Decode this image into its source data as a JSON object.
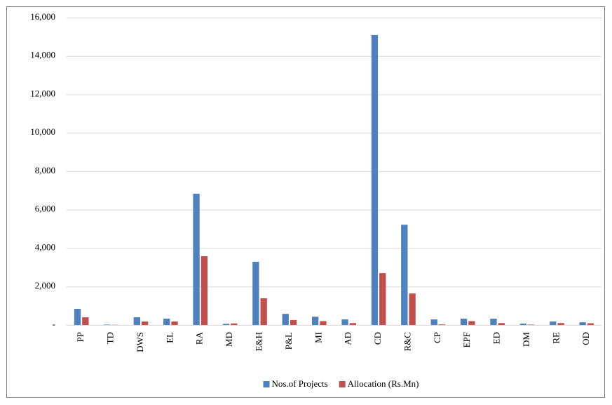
{
  "chart_data": {
    "type": "bar",
    "categories": [
      "PP",
      "TD",
      "DWS",
      "EL",
      "RA",
      "MD",
      "E&H",
      "P&L",
      "MI",
      "AD",
      "CD",
      "R&C",
      "CP",
      "EPF",
      "ED",
      "DM",
      "RE",
      "OD"
    ],
    "series": [
      {
        "name": "Nos.of Projects",
        "color": "#4f81bd",
        "values": [
          840,
          20,
          400,
          330,
          6830,
          60,
          3290,
          580,
          430,
          290,
          15090,
          5220,
          290,
          330,
          330,
          70,
          180,
          140
        ]
      },
      {
        "name": "Allocation (Rs.Mn)",
        "color": "#c0504d",
        "values": [
          400,
          10,
          180,
          180,
          3580,
          80,
          1390,
          260,
          200,
          100,
          2700,
          1640,
          30,
          200,
          100,
          20,
          100,
          90
        ]
      }
    ],
    "ylim": [
      0,
      16000
    ],
    "yticks": [
      {
        "value": 0,
        "label": "-"
      },
      {
        "value": 2000,
        "label": "2,000"
      },
      {
        "value": 4000,
        "label": "4,000"
      },
      {
        "value": 6000,
        "label": "6,000"
      },
      {
        "value": 8000,
        "label": "8,000"
      },
      {
        "value": 10000,
        "label": "10,000"
      },
      {
        "value": 12000,
        "label": "12,000"
      },
      {
        "value": 14000,
        "label": "14,000"
      },
      {
        "value": 16000,
        "label": "16,000"
      }
    ],
    "grid": true,
    "legend": "bottom"
  }
}
